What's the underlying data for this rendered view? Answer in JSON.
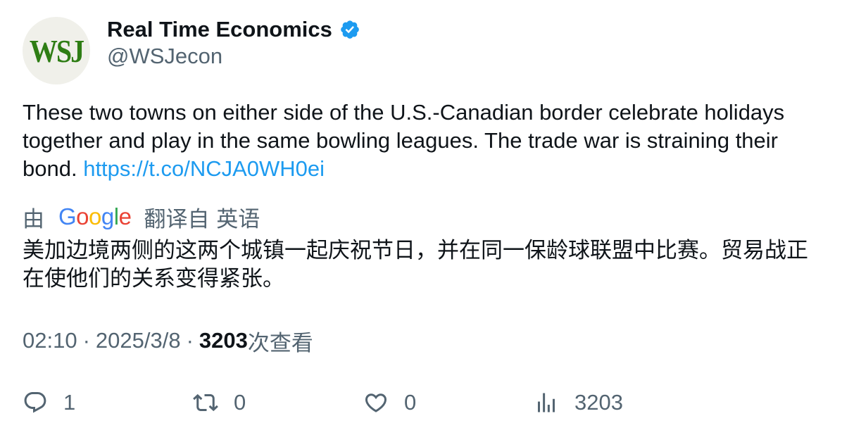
{
  "author": {
    "avatar_text": "WSJ",
    "display_name": "Real Time Economics",
    "handle": "@WSJecon",
    "verified": true
  },
  "tweet": {
    "text": "These two towns on either side of the U.S.-Canadian border celebrate holidays together and play in the same bowling leagues. The trade war is straining their bond. ",
    "link": "https://t.co/NCJA0WH0ei"
  },
  "translation": {
    "prefix": "由",
    "provider": "Google",
    "suffix": "翻译自 英语",
    "text": "美加边境两侧的这两个城镇一起庆祝节日，并在同一保龄球联盟中比赛。贸易战正在使他们的关系变得紧张。"
  },
  "meta": {
    "time": "02:10",
    "separator": "·",
    "date": "2025/3/8",
    "views": "3203",
    "views_label": "次查看"
  },
  "actions": {
    "replies": "1",
    "retweets": "0",
    "likes": "0",
    "views": "3203"
  },
  "colors": {
    "text": "#0f1419",
    "secondary": "#536471",
    "link": "#1d9bf0",
    "verified": "#1d9bf0",
    "wsj_green": "#2e7d14"
  }
}
